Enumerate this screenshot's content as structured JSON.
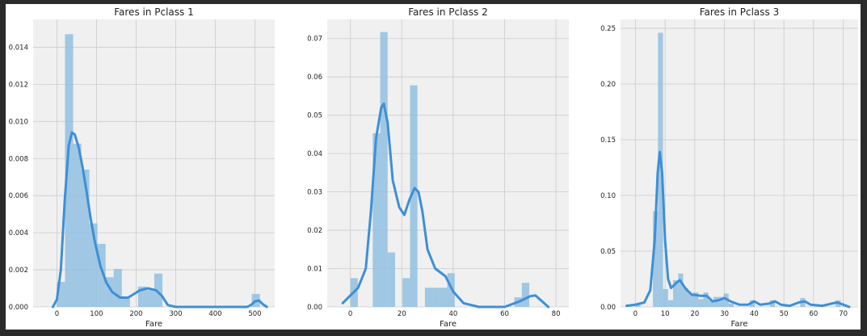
{
  "chart_data": [
    {
      "type": "histogram+kde",
      "title": "Fares in Pclass 1",
      "xlabel": "Fare",
      "ylabel": "",
      "xlim": [
        -60,
        550
      ],
      "ylim": [
        0,
        0.0155
      ],
      "xticks": [
        0,
        100,
        200,
        300,
        400,
        500
      ],
      "yticks": [
        0.0,
        0.002,
        0.004,
        0.006,
        0.008,
        0.01,
        0.012,
        0.014
      ],
      "ytick_labels": [
        "0.000",
        "0.002",
        "0.004",
        "0.006",
        "0.008",
        "0.010",
        "0.012",
        "0.014"
      ],
      "bars": [
        {
          "x0": 0,
          "x1": 20.5,
          "h": 0.00135
        },
        {
          "x0": 20.5,
          "x1": 41,
          "h": 0.0147
        },
        {
          "x0": 41,
          "x1": 61.5,
          "h": 0.0088
        },
        {
          "x0": 61.5,
          "x1": 82,
          "h": 0.0074
        },
        {
          "x0": 82,
          "x1": 102.5,
          "h": 0.0045
        },
        {
          "x0": 102.5,
          "x1": 123,
          "h": 0.0034
        },
        {
          "x0": 123,
          "x1": 143.5,
          "h": 0.0016
        },
        {
          "x0": 143.5,
          "x1": 164,
          "h": 0.00205
        },
        {
          "x0": 164,
          "x1": 184.5,
          "h": 0.00045
        },
        {
          "x0": 184.5,
          "x1": 205,
          "h": 0.0
        },
        {
          "x0": 205,
          "x1": 225.5,
          "h": 0.0011
        },
        {
          "x0": 225.5,
          "x1": 246,
          "h": 0.0009
        },
        {
          "x0": 246,
          "x1": 266.5,
          "h": 0.0018
        },
        {
          "x0": 492,
          "x1": 512.5,
          "h": 0.0007
        }
      ],
      "kde": [
        [
          -10,
          0
        ],
        [
          0,
          0.0004
        ],
        [
          10,
          0.002
        ],
        [
          20,
          0.0058
        ],
        [
          30,
          0.0087
        ],
        [
          38,
          0.0094
        ],
        [
          45,
          0.0093
        ],
        [
          55,
          0.0086
        ],
        [
          65,
          0.0075
        ],
        [
          75,
          0.0062
        ],
        [
          85,
          0.0048
        ],
        [
          95,
          0.0036
        ],
        [
          110,
          0.0022
        ],
        [
          125,
          0.0013
        ],
        [
          140,
          0.0008
        ],
        [
          160,
          0.0005
        ],
        [
          180,
          0.0005
        ],
        [
          195,
          0.0007
        ],
        [
          210,
          0.0009
        ],
        [
          230,
          0.001
        ],
        [
          250,
          0.0009
        ],
        [
          265,
          0.0006
        ],
        [
          280,
          0.0001
        ],
        [
          300,
          0
        ],
        [
          480,
          0
        ],
        [
          490,
          0.0001
        ],
        [
          500,
          0.0003
        ],
        [
          510,
          0.00035
        ],
        [
          520,
          0.00015
        ],
        [
          530,
          0
        ]
      ]
    },
    {
      "type": "histogram+kde",
      "title": "Fares in Pclass 2",
      "xlabel": "Fare",
      "ylabel": "",
      "xlim": [
        -9,
        85
      ],
      "ylim": [
        0,
        0.075
      ],
      "xticks": [
        0,
        20,
        40,
        60,
        80
      ],
      "yticks": [
        0.0,
        0.01,
        0.02,
        0.03,
        0.04,
        0.05,
        0.06,
        0.07
      ],
      "ytick_labels": [
        "0.00",
        "0.01",
        "0.02",
        "0.03",
        "0.04",
        "0.05",
        "0.06",
        "0.07"
      ],
      "bars": [
        {
          "x0": 0,
          "x1": 2.9,
          "h": 0.0075
        },
        {
          "x0": 8.7,
          "x1": 11.6,
          "h": 0.0453
        },
        {
          "x0": 11.6,
          "x1": 14.5,
          "h": 0.0717
        },
        {
          "x0": 14.5,
          "x1": 17.4,
          "h": 0.0142
        },
        {
          "x0": 17.4,
          "x1": 20.3,
          "h": 0.0
        },
        {
          "x0": 20.3,
          "x1": 23.2,
          "h": 0.0075
        },
        {
          "x0": 23.2,
          "x1": 26.1,
          "h": 0.0578
        },
        {
          "x0": 26.1,
          "x1": 29.0,
          "h": 0.0
        },
        {
          "x0": 29.0,
          "x1": 31.9,
          "h": 0.005
        },
        {
          "x0": 31.9,
          "x1": 34.8,
          "h": 0.005
        },
        {
          "x0": 34.8,
          "x1": 37.7,
          "h": 0.005
        },
        {
          "x0": 37.7,
          "x1": 40.6,
          "h": 0.0088
        },
        {
          "x0": 63.8,
          "x1": 66.7,
          "h": 0.0025
        },
        {
          "x0": 66.7,
          "x1": 69.6,
          "h": 0.0063
        }
      ],
      "kde": [
        [
          -3,
          0.001
        ],
        [
          0,
          0.003
        ],
        [
          3,
          0.005
        ],
        [
          6,
          0.01
        ],
        [
          8,
          0.025
        ],
        [
          10,
          0.044
        ],
        [
          12,
          0.052
        ],
        [
          13,
          0.053
        ],
        [
          14.5,
          0.048
        ],
        [
          16.5,
          0.033
        ],
        [
          19,
          0.026
        ],
        [
          21,
          0.024
        ],
        [
          23,
          0.028
        ],
        [
          25,
          0.031
        ],
        [
          26.5,
          0.03
        ],
        [
          28,
          0.025
        ],
        [
          30,
          0.015
        ],
        [
          33,
          0.01
        ],
        [
          37,
          0.008
        ],
        [
          40,
          0.004
        ],
        [
          44,
          0.001
        ],
        [
          50,
          0
        ],
        [
          60,
          0
        ],
        [
          66,
          0.0015
        ],
        [
          70,
          0.0028
        ],
        [
          72,
          0.003
        ],
        [
          75,
          0.0012
        ],
        [
          77,
          0
        ]
      ]
    },
    {
      "type": "histogram+kde",
      "title": "Fares in Pclass 3",
      "xlabel": "Fare",
      "ylabel": "",
      "xlim": [
        -5,
        75
      ],
      "ylim": [
        0,
        0.258
      ],
      "xticks": [
        0,
        10,
        20,
        30,
        40,
        50,
        60,
        70
      ],
      "yticks": [
        0.0,
        0.05,
        0.1,
        0.15,
        0.2,
        0.25
      ],
      "ytick_labels": [
        "0.00",
        "0.05",
        "0.10",
        "0.15",
        "0.20",
        "0.25"
      ],
      "bars": [
        {
          "x0": 0,
          "x1": 1.7,
          "h": 0.003
        },
        {
          "x0": 5.9,
          "x1": 7.6,
          "h": 0.086
        },
        {
          "x0": 7.6,
          "x1": 9.3,
          "h": 0.246
        },
        {
          "x0": 9.3,
          "x1": 11.0,
          "h": 0.016
        },
        {
          "x0": 11.0,
          "x1": 12.7,
          "h": 0.006
        },
        {
          "x0": 12.7,
          "x1": 14.4,
          "h": 0.024
        },
        {
          "x0": 14.4,
          "x1": 16.1,
          "h": 0.03
        },
        {
          "x0": 16.1,
          "x1": 17.8,
          "h": 0.017
        },
        {
          "x0": 17.8,
          "x1": 19.5,
          "h": 0.012
        },
        {
          "x0": 19.5,
          "x1": 21.2,
          "h": 0.013
        },
        {
          "x0": 21.2,
          "x1": 22.9,
          "h": 0.007
        },
        {
          "x0": 22.9,
          "x1": 24.6,
          "h": 0.013
        },
        {
          "x0": 24.6,
          "x1": 26.3,
          "h": 0.006
        },
        {
          "x0": 26.3,
          "x1": 28.0,
          "h": 0.009
        },
        {
          "x0": 28.0,
          "x1": 29.7,
          "h": 0.009
        },
        {
          "x0": 29.7,
          "x1": 31.4,
          "h": 0.012
        },
        {
          "x0": 31.4,
          "x1": 33.1,
          "h": 0.003
        },
        {
          "x0": 38.5,
          "x1": 40.2,
          "h": 0.006
        },
        {
          "x0": 45.3,
          "x1": 47.0,
          "h": 0.006
        },
        {
          "x0": 55.5,
          "x1": 57.2,
          "h": 0.008
        },
        {
          "x0": 67.4,
          "x1": 69.1,
          "h": 0.006
        }
      ],
      "kde": [
        [
          -3,
          0.001
        ],
        [
          0,
          0.002
        ],
        [
          3,
          0.004
        ],
        [
          5,
          0.015
        ],
        [
          6.5,
          0.06
        ],
        [
          7.5,
          0.12
        ],
        [
          8.2,
          0.139
        ],
        [
          9,
          0.12
        ],
        [
          10,
          0.06
        ],
        [
          11,
          0.025
        ],
        [
          12,
          0.017
        ],
        [
          14,
          0.022
        ],
        [
          15,
          0.024
        ],
        [
          17,
          0.016
        ],
        [
          19,
          0.011
        ],
        [
          22,
          0.01
        ],
        [
          24,
          0.01
        ],
        [
          26,
          0.005
        ],
        [
          28,
          0.006
        ],
        [
          30,
          0.008
        ],
        [
          32,
          0.005
        ],
        [
          35,
          0.002
        ],
        [
          38,
          0.002
        ],
        [
          40,
          0.005
        ],
        [
          42,
          0.002
        ],
        [
          45,
          0.003
        ],
        [
          47,
          0.005
        ],
        [
          49,
          0.002
        ],
        [
          52,
          0.001
        ],
        [
          55,
          0.004
        ],
        [
          57,
          0.005
        ],
        [
          59,
          0.002
        ],
        [
          63,
          0.001
        ],
        [
          66,
          0.003
        ],
        [
          68,
          0.004
        ],
        [
          70,
          0.002
        ],
        [
          72,
          0
        ]
      ]
    }
  ]
}
